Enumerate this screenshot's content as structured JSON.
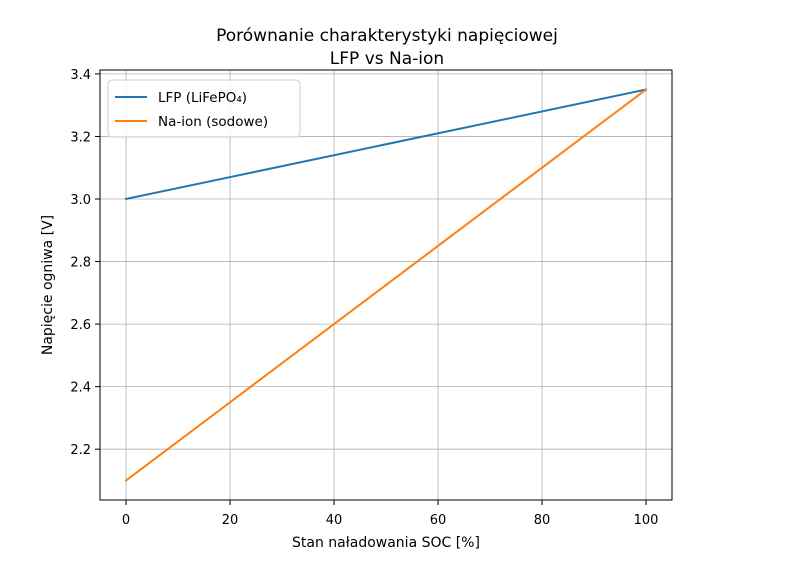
{
  "chart_data": {
    "type": "line",
    "title": "Porównanie charakterystyki napięciowej",
    "subtitle": "LFP vs Na-ion",
    "xlabel": "Stan naładowania SOC [%]",
    "ylabel": "Napięcie ogniwa [V]",
    "xlim": [
      -5,
      105
    ],
    "ylim": [
      2.0375,
      3.4125
    ],
    "x_ticks": [
      0,
      20,
      40,
      60,
      80,
      100
    ],
    "y_ticks": [
      2.2,
      2.4,
      2.6,
      2.8,
      3.0,
      3.2,
      3.4
    ],
    "x_tick_labels": [
      "0",
      "20",
      "40",
      "60",
      "80",
      "100"
    ],
    "y_tick_labels": [
      "2.2",
      "2.4",
      "2.6",
      "2.8",
      "3.0",
      "3.2",
      "3.4"
    ],
    "grid": true,
    "legend_position": "top-left",
    "series": [
      {
        "name": "LFP (LiFePO₄)",
        "color": "#1f77b4",
        "x": [
          0,
          100
        ],
        "y": [
          3.0,
          3.35
        ]
      },
      {
        "name": "Na-ion (sodowe)",
        "color": "#ff7f0e",
        "x": [
          0,
          100
        ],
        "y": [
          2.1,
          3.35
        ]
      }
    ]
  }
}
